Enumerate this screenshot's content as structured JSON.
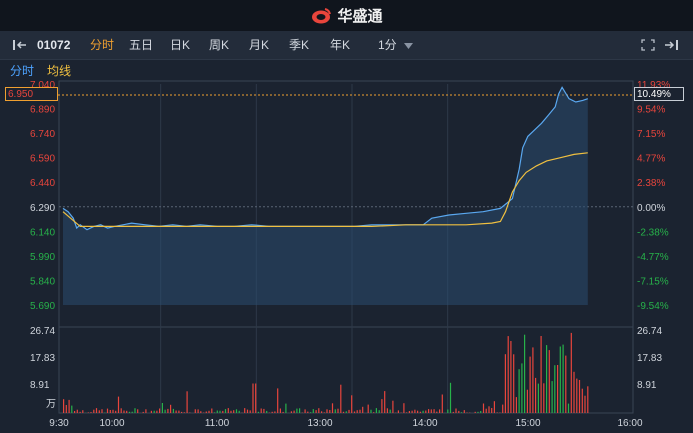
{
  "header": {
    "title": "华盛通"
  },
  "toolbar": {
    "code": "01072",
    "tabs": [
      "分时",
      "五日",
      "日K",
      "周K",
      "月K",
      "季K",
      "年K"
    ],
    "active_tab": 0,
    "interval": "1分"
  },
  "subtabs": {
    "intraday": "分时",
    "avg": "均线"
  },
  "price_box": "6.950",
  "pct_box": "10.49%",
  "colors": {
    "up": "#e8453c",
    "down": "#27b24a",
    "price_line": "#5aa8f0",
    "avg_line": "#f0c040",
    "accent": "#f0a030"
  },
  "chart_data": {
    "type": "line",
    "y_left_ticks": [
      "7.040",
      "6.890",
      "6.740",
      "6.590",
      "6.440",
      "6.290",
      "6.140",
      "5.990",
      "5.840",
      "5.690"
    ],
    "y_right_ticks": [
      "11.93%",
      "9.54%",
      "7.15%",
      "4.77%",
      "2.38%",
      "0.00%",
      "-2.38%",
      "-4.77%",
      "-7.15%",
      "-9.54%"
    ],
    "ylim": [
      5.69,
      7.04
    ],
    "prev_close": 6.29,
    "x_ticks": [
      "9:30",
      "10:00",
      "11:00",
      "13:00",
      "14:00",
      "15:00",
      "16:00"
    ],
    "volume_ticks": [
      "26.74",
      "17.83",
      "8.91",
      "万"
    ],
    "volume_max": 26.74,
    "series": [
      {
        "points": [
          [
            0,
            6.28
          ],
          [
            3,
            6.26
          ],
          [
            6,
            6.22
          ],
          [
            8,
            6.16
          ],
          [
            10,
            6.18
          ],
          [
            14,
            6.15
          ],
          [
            18,
            6.17
          ],
          [
            22,
            6.18
          ],
          [
            26,
            6.16
          ],
          [
            30,
            6.17
          ],
          [
            35,
            6.18
          ],
          [
            40,
            6.19
          ],
          [
            48,
            6.18
          ],
          [
            56,
            6.17
          ],
          [
            64,
            6.18
          ],
          [
            72,
            6.17
          ],
          [
            80,
            6.18
          ],
          [
            90,
            6.17
          ],
          [
            100,
            6.17
          ],
          [
            110,
            6.18
          ],
          [
            120,
            6.17
          ],
          [
            130,
            6.17
          ],
          [
            140,
            6.17
          ],
          [
            150,
            6.17
          ],
          [
            160,
            6.17
          ],
          [
            170,
            6.17
          ],
          [
            180,
            6.18
          ],
          [
            190,
            6.18
          ],
          [
            200,
            6.18
          ],
          [
            210,
            6.18
          ],
          [
            215,
            6.22
          ],
          [
            225,
            6.24
          ],
          [
            235,
            6.25
          ],
          [
            245,
            6.26
          ],
          [
            255,
            6.28
          ],
          [
            262,
            6.34
          ],
          [
            266,
            6.52
          ],
          [
            268,
            6.65
          ],
          [
            271,
            6.72
          ],
          [
            275,
            6.76
          ],
          [
            279,
            6.8
          ],
          [
            283,
            6.85
          ],
          [
            287,
            6.9
          ],
          [
            289,
            6.98
          ],
          [
            291,
            7.02
          ],
          [
            295,
            6.95
          ],
          [
            299,
            6.93
          ],
          [
            303,
            6.94
          ],
          [
            306,
            6.95
          ]
        ]
      },
      {
        "points": [
          [
            0,
            6.26
          ],
          [
            10,
            6.17
          ],
          [
            20,
            6.17
          ],
          [
            40,
            6.17
          ],
          [
            60,
            6.17
          ],
          [
            80,
            6.17
          ],
          [
            100,
            6.17
          ],
          [
            120,
            6.17
          ],
          [
            140,
            6.17
          ],
          [
            160,
            6.17
          ],
          [
            180,
            6.17
          ],
          [
            200,
            6.18
          ],
          [
            215,
            6.18
          ],
          [
            235,
            6.18
          ],
          [
            250,
            6.19
          ],
          [
            255,
            6.2
          ],
          [
            258,
            6.26
          ],
          [
            262,
            6.38
          ],
          [
            266,
            6.45
          ],
          [
            270,
            6.5
          ],
          [
            276,
            6.54
          ],
          [
            282,
            6.57
          ],
          [
            290,
            6.59
          ],
          [
            298,
            6.61
          ],
          [
            306,
            6.62
          ]
        ]
      }
    ],
    "volume": {
      "up_color": "#e8453c",
      "down_color": "#27b24a"
    }
  }
}
